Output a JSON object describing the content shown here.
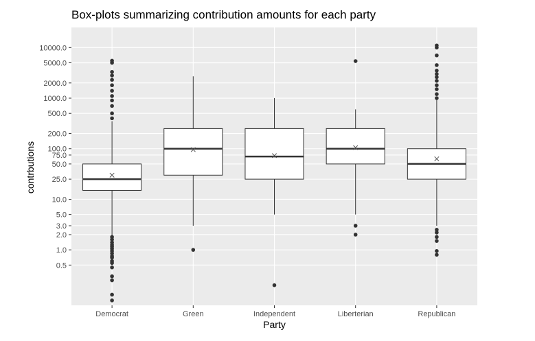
{
  "chart_data": {
    "type": "box",
    "title": "Box-plots summarizing contribution amounts for each party",
    "xlabel": "Party",
    "ylabel": "contrbutions",
    "y_scale": "log10",
    "ylim": [
      0.08,
      25000
    ],
    "y_ticks": [
      {
        "value": 0.5,
        "label": "0.5"
      },
      {
        "value": 1,
        "label": "1.0"
      },
      {
        "value": 2,
        "label": "2.0"
      },
      {
        "value": 3,
        "label": "3.0"
      },
      {
        "value": 5,
        "label": "5.0"
      },
      {
        "value": 10,
        "label": "10.0"
      },
      {
        "value": 25,
        "label": "25.0"
      },
      {
        "value": 50,
        "label": "50.0"
      },
      {
        "value": 75,
        "label": "75.0"
      },
      {
        "value": 100,
        "label": "100.0"
      },
      {
        "value": 200,
        "label": "200.0"
      },
      {
        "value": 500,
        "label": "500.0"
      },
      {
        "value": 1000,
        "label": "1000.0"
      },
      {
        "value": 2000,
        "label": "2000.0"
      },
      {
        "value": 5000,
        "label": "5000.0"
      },
      {
        "value": 10000,
        "label": "10000.0"
      }
    ],
    "grid": true,
    "categories": [
      "Democrat",
      "Green",
      "Independent",
      "Liberterian",
      "Republican"
    ],
    "boxes": [
      {
        "category": "Democrat",
        "lower_whisker": 0.5,
        "q1": 15,
        "median": 25,
        "q3": 50,
        "upper_whisker": 350,
        "mean": 30,
        "outliers": [
          0.1,
          0.13,
          0.25,
          0.3,
          0.45,
          0.55,
          0.6,
          0.7,
          0.75,
          0.85,
          0.95,
          1.05,
          1.15,
          1.25,
          1.4,
          1.6,
          1.8,
          400,
          500,
          700,
          900,
          1100,
          1400,
          1800,
          2300,
          2800,
          3300,
          5000,
          5500
        ]
      },
      {
        "category": "Green",
        "lower_whisker": 3,
        "q1": 30,
        "median": 100,
        "q3": 250,
        "upper_whisker": 2700,
        "mean": 96,
        "outliers": [
          1
        ]
      },
      {
        "category": "Independent",
        "lower_whisker": 5,
        "q1": 25,
        "median": 70,
        "q3": 250,
        "upper_whisker": 1000,
        "mean": 73,
        "outliers": [
          0.2
        ]
      },
      {
        "category": "Liberterian",
        "lower_whisker": 5,
        "q1": 50,
        "median": 100,
        "q3": 250,
        "upper_whisker": 600,
        "mean": 105,
        "outliers": [
          2,
          3,
          5400
        ]
      },
      {
        "category": "Republican",
        "lower_whisker": 3,
        "q1": 25,
        "median": 50,
        "q3": 100,
        "upper_whisker": 950,
        "mean": 63,
        "outliers": [
          0.8,
          0.95,
          1.5,
          1.8,
          2.2,
          2.5,
          1000,
          1200,
          1500,
          1800,
          2200,
          2600,
          3000,
          3500,
          4500,
          7000,
          10000,
          11000
        ]
      }
    ],
    "colors": {
      "panel": "#ebebeb",
      "grid_major": "#ffffff",
      "box_fill": "#ffffff",
      "stroke": "#333333",
      "text": "#4d4d4d"
    }
  }
}
